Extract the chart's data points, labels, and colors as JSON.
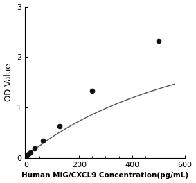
{
  "x_data": [
    0,
    3.9,
    7.8,
    15.6,
    31.25,
    62.5,
    125,
    250,
    500
  ],
  "y_data": [
    0.04,
    0.06,
    0.08,
    0.11,
    0.19,
    0.34,
    0.63,
    1.33,
    2.32
  ],
  "xlabel": "Human MIG/CXCL9 Concentration(pg/mL)",
  "ylabel": "OD Value",
  "xlim": [
    -5,
    600
  ],
  "ylim": [
    0,
    3
  ],
  "xticks": [
    0,
    200,
    400,
    600
  ],
  "yticks": [
    0,
    1,
    2,
    3
  ],
  "marker_color": "#111111",
  "line_color": "#555555",
  "marker_size": 5.5,
  "background_color": "#ffffff",
  "xlabel_fontsize": 7.5,
  "ylabel_fontsize": 8.5,
  "tick_fontsize": 8
}
